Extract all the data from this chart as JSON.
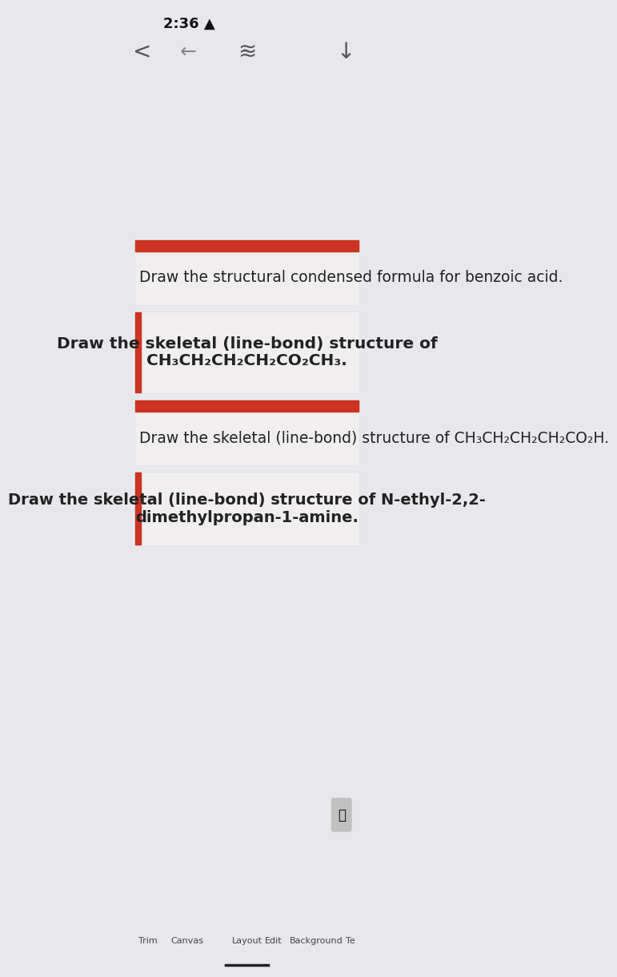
{
  "bg_color": "#e8e8ec",
  "card_bg": "#f0eeee",
  "card_border_color": "#cccccc",
  "red_bar_color": "#cc3322",
  "cards": [
    {
      "text": "Draw the structural condensed formula for benzoic acid.",
      "align": "left",
      "fontsize": 13.5,
      "bold": false,
      "has_red_top": true,
      "has_red_left": false
    },
    {
      "text": "Draw the skeletal (line-bond) structure of\nCH₃CH₂CH₂CH₂CO₂CH₃.",
      "align": "center",
      "fontsize": 14.5,
      "bold": true,
      "has_red_top": false,
      "has_red_left": true
    },
    {
      "text": "Draw the skeletal (line-bond) structure of CH₃CH₂CH₂CH₂CO₂H.",
      "align": "left",
      "fontsize": 13.5,
      "bold": false,
      "has_red_top": true,
      "has_red_left": false
    },
    {
      "text": "Draw the skeletal (line-bond) structure of N-ethyl-2,2-\ndimethylpropan-1-amine.",
      "align": "center",
      "fontsize": 14.0,
      "bold": true,
      "has_red_top": false,
      "has_red_left": true
    }
  ],
  "status_bar_color": "#e8e8ec",
  "toolbar_bg": "#e8e8ec"
}
